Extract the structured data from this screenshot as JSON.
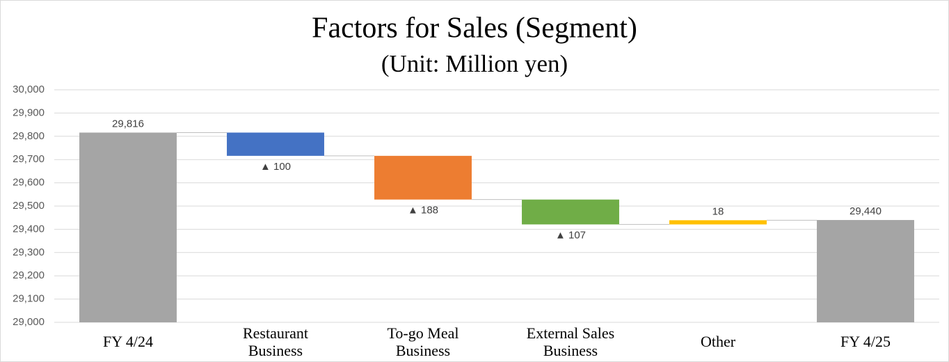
{
  "chart_data": {
    "type": "waterfall",
    "title": "Factors for Sales (Segment)",
    "subtitle": "(Unit: Million yen)",
    "categories": [
      "FY 4/24",
      "Restaurant Business",
      "To-go Meal Business",
      "External Sales Business",
      "Other",
      "FY 4/25"
    ],
    "values": [
      29816,
      -100,
      -188,
      -107,
      18,
      29440
    ],
    "value_labels": [
      "29,816",
      "▲ 100",
      "▲ 188",
      "▲ 107",
      "18",
      "29,440"
    ],
    "colors": [
      "#a5a5a5",
      "#4472c4",
      "#ed7d31",
      "#70ad47",
      "#ffc000",
      "#a5a5a5"
    ],
    "ylim": [
      29000,
      30000
    ],
    "yticks": [
      {
        "value": 29000,
        "label": "29,000"
      },
      {
        "value": 29100,
        "label": "29,100"
      },
      {
        "value": 29200,
        "label": "29,200"
      },
      {
        "value": 29300,
        "label": "29,300"
      },
      {
        "value": 29400,
        "label": "29,400"
      },
      {
        "value": 29500,
        "label": "29,500"
      },
      {
        "value": 29600,
        "label": "29,600"
      },
      {
        "value": 29700,
        "label": "29,700"
      },
      {
        "value": 29800,
        "label": "29,800"
      },
      {
        "value": 29900,
        "label": "29,900"
      },
      {
        "value": 30000,
        "label": "30,000"
      }
    ],
    "grid": true
  }
}
